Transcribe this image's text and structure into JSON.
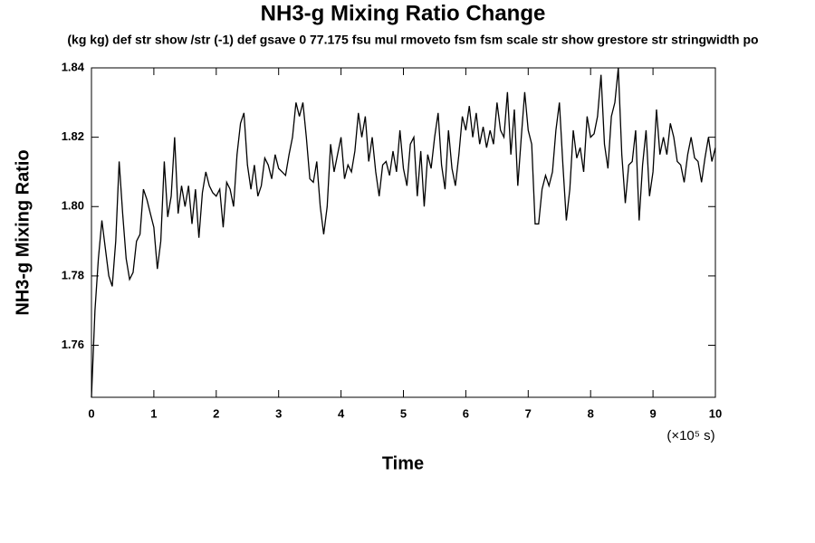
{
  "chart_data": {
    "type": "line",
    "title": "NH3-g Mixing Ratio Change",
    "subtitle": "(kg kg) def str show /str (-1) def gsave 0 77.175 fsu mul rmoveto fsm fsm scale str show grestore str stringwidth po",
    "x_label": "Time",
    "x_unit": "(×10⁵ s)",
    "y_label": "NH3-g Mixing Ratio",
    "xlim": [
      0,
      10
    ],
    "ylim": [
      1.745,
      1.84
    ],
    "xticks": [
      0,
      1,
      2,
      3,
      4,
      5,
      6,
      7,
      8,
      9,
      10
    ],
    "yticks": [
      1.76,
      1.78,
      {
        "value": 1.8,
        "label": "1.80"
      },
      1.82,
      1.84
    ],
    "color": "#000000",
    "x": [
      0,
      0.056,
      0.111,
      0.167,
      0.222,
      0.278,
      0.333,
      0.389,
      0.444,
      0.5,
      0.556,
      0.611,
      0.667,
      0.722,
      0.778,
      0.833,
      0.889,
      0.944,
      1,
      1.056,
      1.111,
      1.167,
      1.222,
      1.278,
      1.333,
      1.389,
      1.444,
      1.5,
      1.556,
      1.611,
      1.667,
      1.722,
      1.778,
      1.833,
      1.889,
      1.944,
      2,
      2.056,
      2.111,
      2.167,
      2.222,
      2.278,
      2.333,
      2.389,
      2.444,
      2.5,
      2.556,
      2.611,
      2.667,
      2.722,
      2.778,
      2.833,
      2.889,
      2.944,
      3,
      3.056,
      3.111,
      3.167,
      3.222,
      3.278,
      3.333,
      3.389,
      3.444,
      3.5,
      3.556,
      3.611,
      3.667,
      3.722,
      3.778,
      3.833,
      3.889,
      3.944,
      4,
      4.056,
      4.111,
      4.167,
      4.222,
      4.278,
      4.333,
      4.389,
      4.444,
      4.5,
      4.556,
      4.611,
      4.667,
      4.722,
      4.778,
      4.833,
      4.889,
      4.944,
      5,
      5.056,
      5.111,
      5.167,
      5.222,
      5.278,
      5.333,
      5.389,
      5.444,
      5.5,
      5.556,
      5.611,
      5.667,
      5.722,
      5.778,
      5.833,
      5.889,
      5.944,
      6,
      6.056,
      6.111,
      6.167,
      6.222,
      6.278,
      6.333,
      6.389,
      6.444,
      6.5,
      6.556,
      6.611,
      6.667,
      6.722,
      6.778,
      6.833,
      6.889,
      6.944,
      7,
      7.056,
      7.111,
      7.167,
      7.222,
      7.278,
      7.333,
      7.389,
      7.444,
      7.5,
      7.556,
      7.611,
      7.667,
      7.722,
      7.778,
      7.833,
      7.889,
      7.944,
      8,
      8.056,
      8.111,
      8.167,
      8.222,
      8.278,
      8.333,
      8.389,
      8.444,
      8.5,
      8.556,
      8.611,
      8.667,
      8.722,
      8.778,
      8.833,
      8.889,
      8.944,
      9,
      9.056,
      9.111,
      9.167,
      9.222,
      9.278,
      9.333,
      9.389,
      9.444,
      9.5,
      9.556,
      9.611,
      9.667,
      9.722,
      9.778,
      9.833,
      9.889,
      9.944,
      10
    ],
    "values": [
      1.745,
      1.77,
      1.785,
      1.796,
      1.788,
      1.78,
      1.777,
      1.79,
      1.813,
      1.798,
      1.785,
      1.779,
      1.781,
      1.79,
      1.792,
      1.805,
      1.802,
      1.798,
      1.794,
      1.782,
      1.79,
      1.813,
      1.797,
      1.803,
      1.82,
      1.798,
      1.806,
      1.8,
      1.806,
      1.795,
      1.805,
      1.791,
      1.804,
      1.81,
      1.806,
      1.804,
      1.803,
      1.805,
      1.794,
      1.807,
      1.805,
      1.8,
      1.815,
      1.824,
      1.827,
      1.812,
      1.805,
      1.812,
      1.803,
      1.806,
      1.814,
      1.812,
      1.808,
      1.815,
      1.811,
      1.81,
      1.809,
      1.815,
      1.82,
      1.83,
      1.826,
      1.83,
      1.82,
      1.808,
      1.807,
      1.813,
      1.8,
      1.792,
      1.8,
      1.818,
      1.81,
      1.815,
      1.82,
      1.808,
      1.812,
      1.81,
      1.816,
      1.827,
      1.82,
      1.826,
      1.813,
      1.82,
      1.81,
      1.803,
      1.812,
      1.813,
      1.809,
      1.816,
      1.81,
      1.822,
      1.811,
      1.806,
      1.818,
      1.82,
      1.803,
      1.816,
      1.8,
      1.815,
      1.811,
      1.82,
      1.827,
      1.812,
      1.805,
      1.822,
      1.811,
      1.806,
      1.815,
      1.826,
      1.822,
      1.829,
      1.82,
      1.827,
      1.818,
      1.823,
      1.817,
      1.822,
      1.818,
      1.83,
      1.822,
      1.82,
      1.833,
      1.815,
      1.828,
      1.806,
      1.82,
      1.833,
      1.822,
      1.818,
      1.795,
      1.795,
      1.805,
      1.809,
      1.806,
      1.81,
      1.822,
      1.83,
      1.812,
      1.796,
      1.805,
      1.822,
      1.814,
      1.817,
      1.81,
      1.826,
      1.82,
      1.821,
      1.826,
      1.838,
      1.818,
      1.811,
      1.826,
      1.83,
      1.84,
      1.815,
      1.801,
      1.812,
      1.813,
      1.822,
      1.796,
      1.812,
      1.822,
      1.803,
      1.81,
      1.828,
      1.815,
      1.82,
      1.815,
      1.824,
      1.82,
      1.813,
      1.812,
      1.807,
      1.815,
      1.82,
      1.814,
      1.813,
      1.807,
      1.814,
      1.82,
      1.813,
      1.817
    ]
  }
}
